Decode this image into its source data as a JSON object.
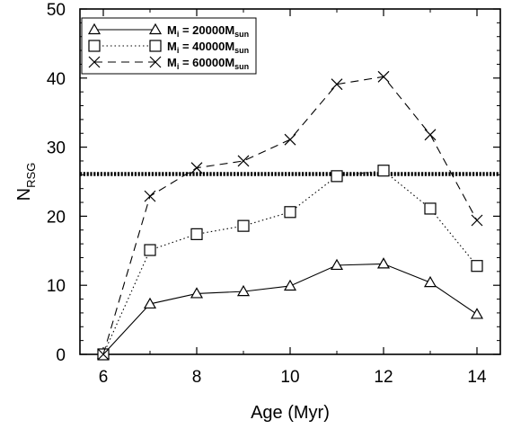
{
  "chart_data": {
    "type": "line",
    "xlabel": "Age (Myr)",
    "ylabel": {
      "main": "N",
      "sub": "RSG"
    },
    "xlim": [
      5.5,
      14.5
    ],
    "ylim": [
      0,
      50
    ],
    "xticks": [
      6,
      8,
      10,
      12,
      14
    ],
    "yticks": [
      0,
      10,
      20,
      30,
      40,
      50
    ],
    "x": [
      6,
      7,
      8,
      9,
      10,
      11,
      12,
      13,
      14
    ],
    "series": [
      {
        "name_parts": {
          "m": "M",
          "sub_i": "i",
          "eq": " = 20000M",
          "sub_sun": "sun"
        },
        "values": [
          0,
          7.3,
          8.8,
          9.1,
          9.9,
          12.9,
          13.1,
          10.4,
          5.8
        ],
        "marker": "triangle",
        "line": "solid"
      },
      {
        "name_parts": {
          "m": "M",
          "sub_i": "i",
          "eq": " = 40000M",
          "sub_sun": "sun"
        },
        "values": [
          0,
          15.1,
          17.4,
          18.6,
          20.6,
          25.8,
          26.6,
          21.1,
          12.8
        ],
        "marker": "square",
        "line": "dotted"
      },
      {
        "name_parts": {
          "m": "M",
          "sub_i": "i",
          "eq": " = 60000M",
          "sub_sun": "sun"
        },
        "values": [
          0,
          22.9,
          27.0,
          28.0,
          31.1,
          39.1,
          40.2,
          31.8,
          19.4
        ],
        "marker": "x",
        "line": "dashed"
      }
    ],
    "reference_line": {
      "y": 26.1,
      "style": "thick dotted horizontal"
    },
    "grid": false,
    "legend_placement": "top-left",
    "colors": {
      "foreground": "#000000",
      "background": "#ffffff"
    }
  }
}
